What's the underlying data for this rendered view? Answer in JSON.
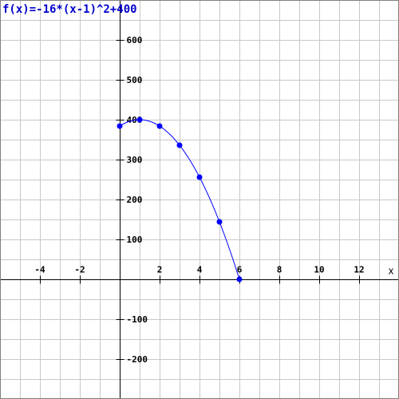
{
  "chart_data": {
    "type": "line",
    "title": "f(x)=-16*(x-1)^2+400",
    "xlabel": "x",
    "ylabel": "",
    "xlim": [
      -6,
      14
    ],
    "ylim": [
      -300,
      700
    ],
    "x_grid_step": 1,
    "y_grid_step": 50,
    "grid": true,
    "x_tick_labels": [
      {
        "value": -4,
        "label": "-4"
      },
      {
        "value": -2,
        "label": "-2"
      },
      {
        "value": 2,
        "label": "2"
      },
      {
        "value": 4,
        "label": "4"
      },
      {
        "value": 6,
        "label": "6"
      },
      {
        "value": 8,
        "label": "8"
      },
      {
        "value": 10,
        "label": "10"
      },
      {
        "value": 12,
        "label": "12"
      }
    ],
    "y_tick_labels": [
      {
        "value": 600,
        "label": "600"
      },
      {
        "value": 500,
        "label": "500"
      },
      {
        "value": 400,
        "label": "400"
      },
      {
        "value": 300,
        "label": "300"
      },
      {
        "value": 200,
        "label": "200"
      },
      {
        "value": 100,
        "label": "100"
      },
      {
        "value": -100,
        "label": "-100"
      },
      {
        "value": -200,
        "label": "-200"
      }
    ],
    "curve": {
      "a": -16,
      "h": 1,
      "k": 400,
      "x_start": 0,
      "x_end": 6
    },
    "points": [
      {
        "x": 0,
        "y": 384
      },
      {
        "x": 1,
        "y": 400
      },
      {
        "x": 2,
        "y": 384
      },
      {
        "x": 3,
        "y": 336
      },
      {
        "x": 4,
        "y": 256
      },
      {
        "x": 5,
        "y": 144
      },
      {
        "x": 6,
        "y": 0
      }
    ],
    "colors": {
      "grid": "#c8c8c8",
      "axis": "#000000",
      "curve": "#0000ff",
      "title": "#0000cc",
      "border": "#808080"
    }
  }
}
